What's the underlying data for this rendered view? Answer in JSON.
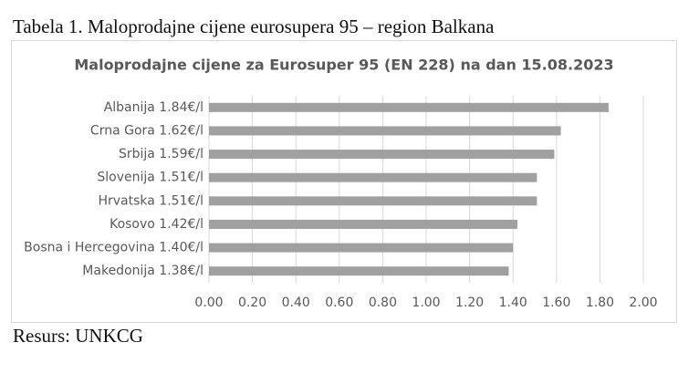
{
  "caption": "Tabela 1. Maloprodajne cijene eurosupera 95 – region Balkana",
  "source": "Resurs: UNKCG",
  "chart_data": {
    "type": "bar",
    "orientation": "horizontal",
    "title": "Maloprodajne cijene za Eurosuper 95 (EN 228) na dan 15.08.2023",
    "categories": [
      "Albanija 1.84€/l",
      "Crna Gora 1.62€/l",
      "Srbija 1.59€/l",
      "Slovenija 1.51€/l",
      "Hrvatska 1.51€/l",
      "Kosovo 1.42€/l",
      "Bosna i Hercegovina 1.40€/l",
      "Makedonija 1.38€/l"
    ],
    "values": [
      1.84,
      1.62,
      1.59,
      1.51,
      1.51,
      1.42,
      1.4,
      1.38
    ],
    "color": "#a0a0a0",
    "xlim": [
      0,
      2
    ],
    "xticks": [
      {
        "value": 0,
        "label": "0.00"
      },
      {
        "value": 0.2,
        "label": "0.20"
      },
      {
        "value": 0.4,
        "label": "0.40"
      },
      {
        "value": 0.6,
        "label": "0.60"
      },
      {
        "value": 0.8,
        "label": "0.80"
      },
      {
        "value": 1.0,
        "label": "1.00"
      },
      {
        "value": 1.2,
        "label": "1.20"
      },
      {
        "value": 1.4,
        "label": "1.40"
      },
      {
        "value": 1.6,
        "label": "1.60"
      },
      {
        "value": 1.8,
        "label": "1.80"
      },
      {
        "value": 2.0,
        "label": "2.00"
      }
    ],
    "grid": true
  }
}
